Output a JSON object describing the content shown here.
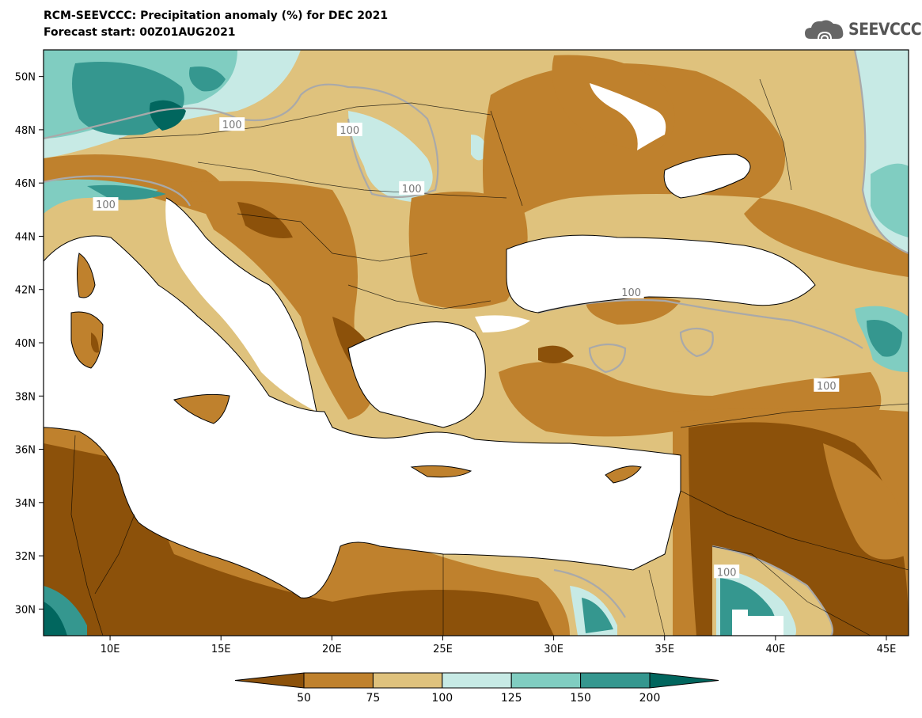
{
  "header": {
    "title": "RCM-SEEVCCC: Precipitation anomaly (%) for DEC 2021",
    "subtitle": "Forecast start: 00Z01AUG2021"
  },
  "logo": {
    "text": "SEEVCCC",
    "icon": "cloud-icon"
  },
  "map": {
    "lon_range": [
      7,
      46
    ],
    "lat_range": [
      29,
      51
    ],
    "lat_ticks": [
      "50N",
      "48N",
      "46N",
      "44N",
      "42N",
      "40N",
      "38N",
      "36N",
      "34N",
      "32N",
      "30N"
    ],
    "lon_ticks": [
      "10E",
      "15E",
      "20E",
      "25E",
      "30E",
      "35E",
      "40E",
      "45E"
    ],
    "contour_labels": [
      "100",
      "100",
      "100",
      "100",
      "100",
      "100",
      "100"
    ]
  },
  "legend": {
    "thresholds": [
      "50",
      "75",
      "100",
      "125",
      "150",
      "200"
    ],
    "colors": [
      "#8c510a",
      "#bf812d",
      "#dfc27d",
      "#c7eae5",
      "#80cdc1",
      "#35978f",
      "#01665e"
    ]
  }
}
